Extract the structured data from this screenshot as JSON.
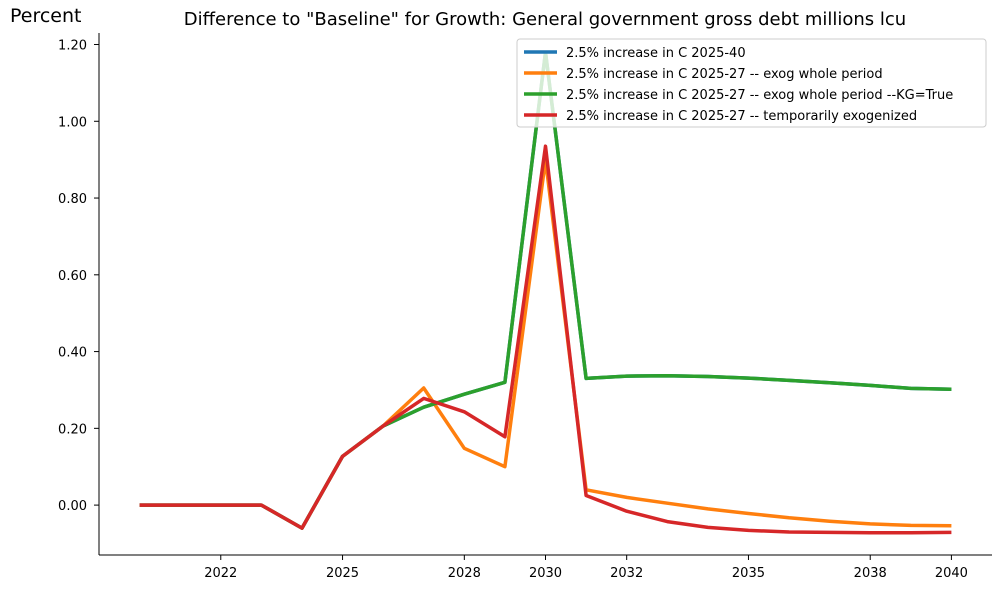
{
  "chart_data": {
    "type": "line",
    "title": "Difference to \"Baseline\" for Growth: General government gross debt millions lcu",
    "ylabel": "Percent",
    "xlabel": "",
    "x": [
      2020,
      2021,
      2022,
      2023,
      2024,
      2025,
      2026,
      2027,
      2028,
      2029,
      2030,
      2031,
      2032,
      2033,
      2034,
      2035,
      2036,
      2037,
      2038,
      2039,
      2040
    ],
    "x_tick_values": [
      2022,
      2025,
      2028,
      2030,
      2032,
      2035,
      2038,
      2040
    ],
    "x_tick_labels": [
      "2022",
      "2025",
      "2028",
      "2030",
      "2032",
      "2035",
      "2038",
      "2040"
    ],
    "y_tick_values": [
      0.0,
      0.2,
      0.4,
      0.6,
      0.8,
      1.0,
      1.2
    ],
    "y_tick_labels": [
      "0.00",
      "0.20",
      "0.40",
      "0.60",
      "0.80",
      "1.00",
      "1.20"
    ],
    "ylim": [
      -0.13,
      1.23
    ],
    "xlim": [
      2019.0,
      2041.0
    ],
    "grid": false,
    "legend_position": "top-right",
    "series": [
      {
        "name": "2.5% increase in C 2025-40",
        "color": "#1f77b4",
        "values": [
          0.0,
          0.0,
          0.0,
          0.0,
          -0.06,
          0.127,
          0.206,
          0.255,
          0.289,
          0.32,
          1.18,
          0.33,
          0.336,
          0.337,
          0.335,
          0.331,
          0.325,
          0.319,
          0.312,
          0.304,
          0.302
        ]
      },
      {
        "name": "2.5% increase in C 2025-27 -- exog whole period",
        "color": "#ff7f0e",
        "values": [
          0.0,
          0.0,
          0.0,
          0.0,
          -0.06,
          0.127,
          0.206,
          0.305,
          0.148,
          0.1,
          0.9,
          0.04,
          0.02,
          0.005,
          -0.01,
          -0.022,
          -0.033,
          -0.042,
          -0.049,
          -0.053,
          -0.054
        ]
      },
      {
        "name": "2.5% increase in C 2025-27 -- exog whole period --KG=True",
        "color": "#2ca02c",
        "values": [
          0.0,
          0.0,
          0.0,
          0.0,
          -0.06,
          0.127,
          0.206,
          0.255,
          0.289,
          0.32,
          1.18,
          0.33,
          0.336,
          0.337,
          0.335,
          0.331,
          0.325,
          0.319,
          0.312,
          0.304,
          0.302
        ]
      },
      {
        "name": "2.5% increase in C 2025-27 -- temporarily exogenized",
        "color": "#d62728",
        "values": [
          0.0,
          0.0,
          0.0,
          0.0,
          -0.06,
          0.127,
          0.206,
          0.278,
          0.243,
          0.178,
          0.935,
          0.025,
          -0.016,
          -0.043,
          -0.058,
          -0.066,
          -0.07,
          -0.071,
          -0.072,
          -0.072,
          -0.071
        ]
      }
    ]
  }
}
